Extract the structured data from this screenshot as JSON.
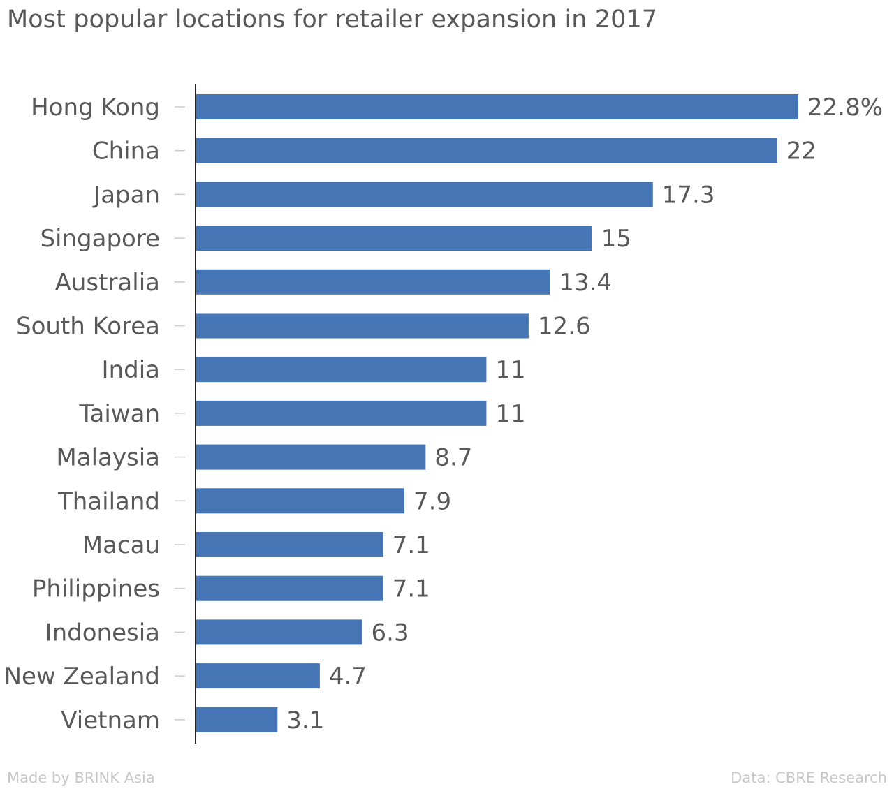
{
  "title": "Most popular locations for retailer expansion in 2017",
  "footer": {
    "left": "Made by BRINK Asia",
    "right": "Data: CBRE Research"
  },
  "colors": {
    "bar": "#4575b4",
    "axis": "#222222",
    "tick": "#cccccc",
    "text": "#595959",
    "footer": "#c8c8c8"
  },
  "chart_data": {
    "type": "bar",
    "orientation": "horizontal",
    "title": "Most popular locations for retailer expansion in 2017",
    "categories": [
      "Hong Kong",
      "China",
      "Japan",
      "Singapore",
      "Australia",
      "South Korea",
      "India",
      "Taiwan",
      "Malaysia",
      "Thailand",
      "Macau",
      "Philippines",
      "Indonesia",
      "New Zealand",
      "Vietnam"
    ],
    "values": [
      22.8,
      22,
      17.3,
      15,
      13.4,
      12.6,
      11,
      11,
      8.7,
      7.9,
      7.1,
      7.1,
      6.3,
      4.7,
      3.1
    ],
    "value_labels": [
      "22.8%",
      "22",
      "17.3",
      "15",
      "13.4",
      "12.6",
      "11",
      "11",
      "8.7",
      "7.9",
      "7.1",
      "7.1",
      "6.3",
      "4.7",
      "3.1"
    ],
    "unit": "%",
    "xlim": [
      0,
      22.8
    ],
    "grid": false,
    "legend": "none"
  }
}
